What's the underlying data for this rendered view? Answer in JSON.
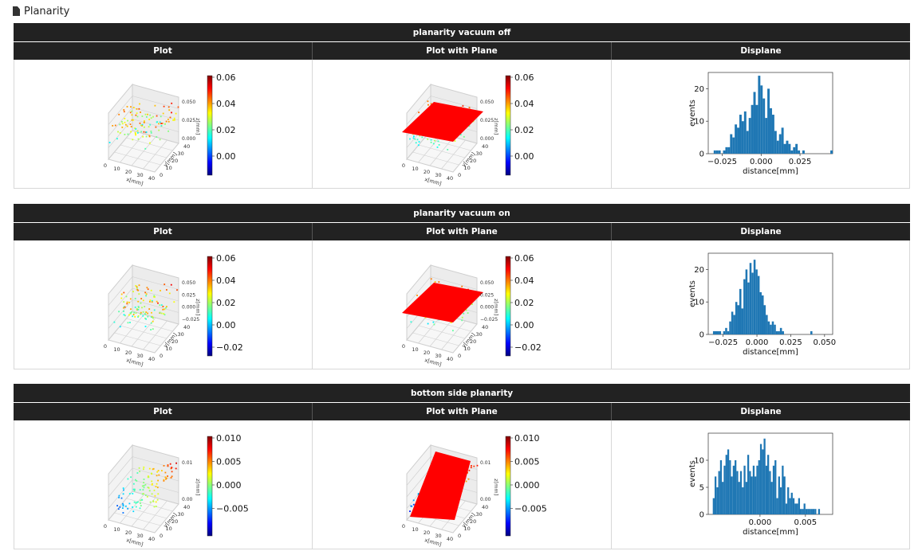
{
  "header": {
    "icon": "document-icon",
    "title": "Planarity"
  },
  "columns": [
    "Plot",
    "Plot with Plane",
    "Displane"
  ],
  "sections": [
    {
      "title": "planarity vacuum off",
      "colorbar_ticks": [
        "0.06",
        "0.04",
        "0.02",
        "0.00"
      ],
      "z_ticks": [
        "0.050",
        "0.025",
        "0.000"
      ],
      "z_label": "z[mm]",
      "x_ticks": [
        "0",
        "10",
        "20",
        "30",
        "40"
      ],
      "y_ticks": [
        "0",
        "10",
        "20",
        "30",
        "40"
      ],
      "x_label": "x[mm]",
      "y_label": "y[mm]",
      "hist_x_ticks": [
        "−0.025",
        "0.000",
        "0.025"
      ],
      "hist_y_ticks": [
        "0",
        "10",
        "20"
      ],
      "hist_xlabel": "distance[mm]",
      "hist_ylabel": "events"
    },
    {
      "title": "planarity vacuum on",
      "colorbar_ticks": [
        "0.06",
        "0.04",
        "0.02",
        "0.00",
        "−0.02"
      ],
      "z_ticks": [
        "0.050",
        "0.025",
        "0.000",
        "−0.025"
      ],
      "z_label": "z[mm]",
      "x_ticks": [
        "0",
        "10",
        "20",
        "30",
        "40"
      ],
      "y_ticks": [
        "0",
        "10",
        "20",
        "30",
        "40"
      ],
      "x_label": "x[mm]",
      "y_label": "y[mm]",
      "hist_x_ticks": [
        "−0.025",
        "0.000",
        "0.025",
        "0.050"
      ],
      "hist_y_ticks": [
        "0",
        "10",
        "20"
      ],
      "hist_xlabel": "distance[mm]",
      "hist_ylabel": "events"
    },
    {
      "title": "bottom side planarity",
      "colorbar_ticks": [
        "0.010",
        "0.005",
        "0.000",
        "−0.005"
      ],
      "z_ticks": [
        "0.01",
        "0.00"
      ],
      "z_label": "z[mm]",
      "x_ticks": [
        "0",
        "10",
        "20",
        "30",
        "40"
      ],
      "y_ticks": [
        "0",
        "10",
        "20",
        "30",
        "40"
      ],
      "x_label": "x[mm]",
      "y_label": "y[mm]",
      "hist_x_ticks": [
        "0.000",
        "0.005"
      ],
      "hist_y_ticks": [
        "0",
        "5",
        "10"
      ],
      "hist_xlabel": "distance[mm]",
      "hist_ylabel": "events"
    }
  ],
  "chart_data": [
    {
      "type": "bar",
      "title": "",
      "xlabel": "distance[mm]",
      "ylabel": "events",
      "xlim": [
        -0.034,
        0.046
      ],
      "ylim": [
        0,
        25
      ],
      "bin_width": 0.0015,
      "bin_start": -0.0305,
      "values": [
        1,
        1,
        1,
        0,
        1,
        2,
        2,
        6,
        5,
        9,
        8,
        12,
        10,
        13,
        7,
        11,
        15,
        19,
        15,
        24,
        21,
        17,
        11,
        20,
        14,
        12,
        7,
        4,
        6,
        8,
        3,
        4,
        3,
        1,
        2,
        3,
        1,
        0,
        1,
        0,
        0,
        0,
        0,
        0,
        0,
        0,
        0,
        0,
        0,
        0,
        1
      ]
    },
    {
      "type": "bar",
      "title": "",
      "xlabel": "distance[mm]",
      "ylabel": "events",
      "xlim": [
        -0.036,
        0.056
      ],
      "ylim": [
        0,
        25
      ],
      "bin_width": 0.0015,
      "bin_start": -0.0325,
      "values": [
        1,
        1,
        1,
        1,
        0,
        1,
        2,
        1,
        4,
        7,
        6,
        10,
        9,
        14,
        8,
        17,
        20,
        16,
        22,
        19,
        23,
        20,
        18,
        13,
        12,
        9,
        6,
        4,
        3,
        4,
        3,
        1,
        1,
        2,
        1,
        0,
        0,
        0,
        0,
        0,
        0,
        0,
        0,
        0,
        0,
        0,
        0,
        0,
        1
      ]
    },
    {
      "type": "bar",
      "title": "",
      "xlabel": "distance[mm]",
      "ylabel": "events",
      "xlim": [
        -0.0057,
        0.008
      ],
      "ylim": [
        0,
        15
      ],
      "bin_width": 0.0002,
      "bin_start": -0.0052,
      "values": [
        3,
        7,
        5,
        8,
        10,
        6,
        9,
        11,
        12,
        10,
        7,
        9,
        10,
        8,
        6,
        8,
        5,
        9,
        6,
        11,
        8,
        7,
        9,
        7,
        9,
        10,
        13,
        12,
        14,
        9,
        11,
        8,
        6,
        9,
        10,
        3,
        7,
        5,
        9,
        7,
        2,
        5,
        3,
        4,
        3,
        2,
        2,
        3,
        1,
        1,
        2,
        1,
        1,
        1,
        1,
        1,
        1,
        0,
        1
      ]
    }
  ],
  "colors": {
    "bar": "#1f77b4",
    "plane": "#ff0000",
    "header_bg": "#222222"
  }
}
